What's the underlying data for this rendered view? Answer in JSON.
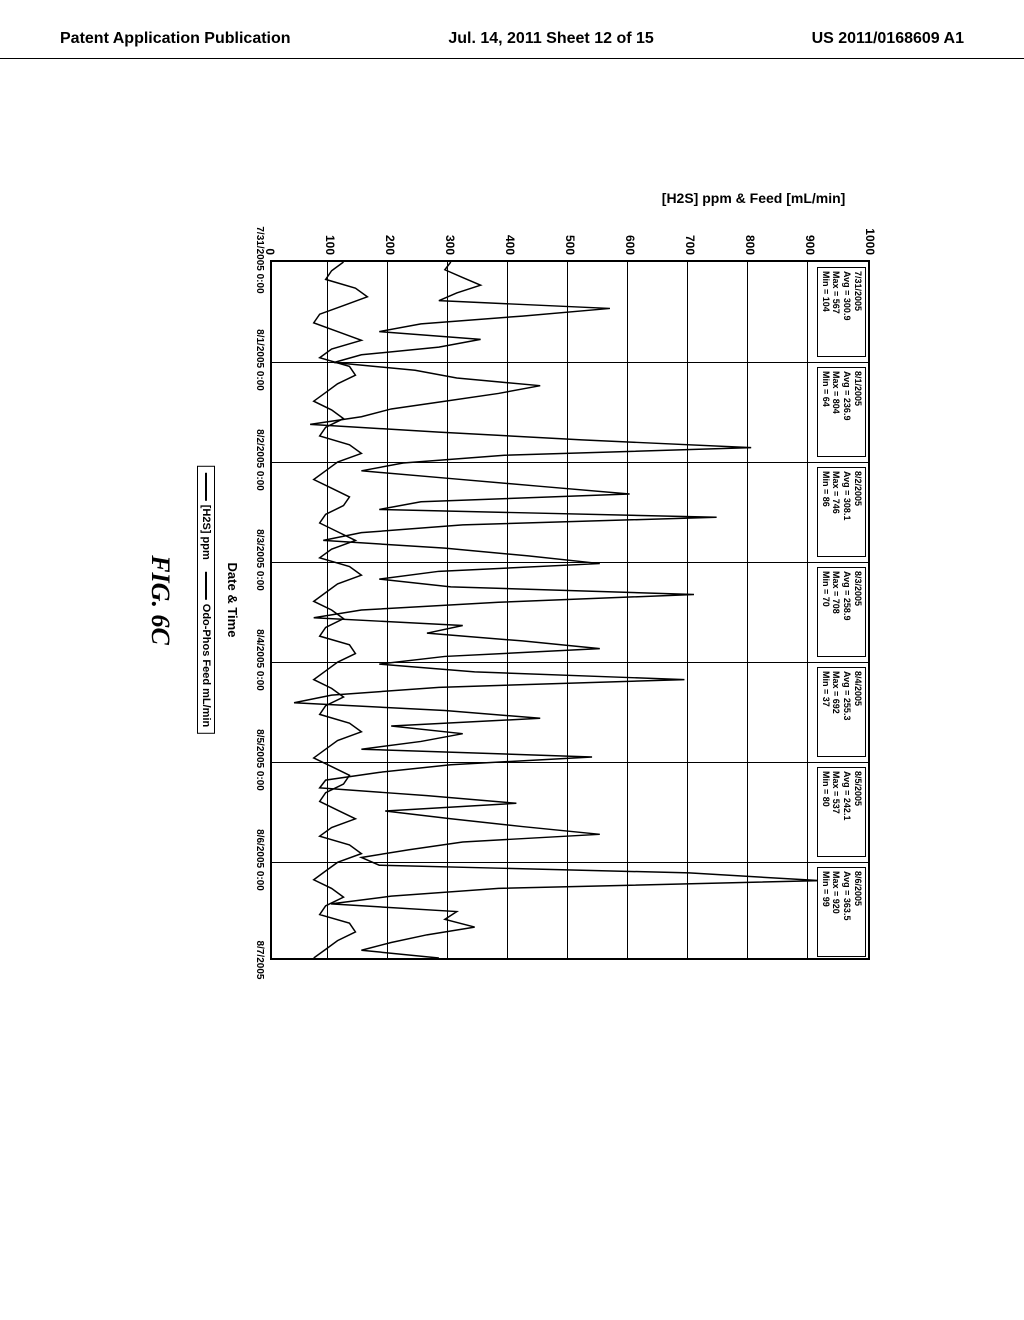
{
  "header": {
    "left": "Patent Application Publication",
    "center": "Jul. 14, 2011  Sheet 12 of 15",
    "right": "US 2011/0168609 A1"
  },
  "chart": {
    "type": "line",
    "ylabel": "[H2S] ppm & Feed [mL/min]",
    "xlabel": "Date & Time",
    "ylim": [
      0,
      1000
    ],
    "yticks": [
      0,
      100,
      200,
      300,
      400,
      500,
      600,
      700,
      800,
      900,
      1000
    ],
    "xticks": [
      "7/31/2005 0:00",
      "8/1/2005 0:00",
      "8/2/2005 0:00",
      "8/3/2005 0:00",
      "8/4/2005 0:00",
      "8/5/2005 0:00",
      "8/6/2005 0:00"
    ],
    "xtick_end": "8/7/2005",
    "background_color": "#ffffff",
    "grid_color": "#000000",
    "line_color": "#000000",
    "line_width": 1.5,
    "stat_boxes": [
      {
        "date": "7/31/2005",
        "avg": "300.9",
        "max": "567",
        "min": "104"
      },
      {
        "date": "8/1/2005",
        "avg": "236.9",
        "max": "804",
        "min": "64"
      },
      {
        "date": "8/2/2005",
        "avg": "308.1",
        "max": "746",
        "min": "86"
      },
      {
        "date": "8/3/2005",
        "avg": "258.9",
        "max": "708",
        "min": "70"
      },
      {
        "date": "8/4/2005",
        "avg": "255.3",
        "max": "692",
        "min": "37"
      },
      {
        "date": "8/5/2005",
        "avg": "242.1",
        "max": "537",
        "min": "80"
      },
      {
        "date": "8/6/2005",
        "avg": "363.5",
        "max": "920",
        "min": "99"
      }
    ],
    "legend": {
      "items": [
        "[H2S] ppm",
        "Odo-Phos Feed mL/min"
      ]
    },
    "series_h2s": [
      300,
      290,
      320,
      350,
      310,
      280,
      567,
      420,
      250,
      180,
      350,
      280,
      150,
      104,
      240,
      310,
      450,
      380,
      290,
      200,
      150,
      64,
      280,
      520,
      804,
      390,
      220,
      150,
      300,
      450,
      600,
      250,
      180,
      746,
      320,
      150,
      86,
      290,
      430,
      550,
      280,
      180,
      300,
      708,
      380,
      150,
      70,
      320,
      260,
      420,
      550,
      290,
      180,
      340,
      692,
      280,
      100,
      37,
      290,
      450,
      200,
      320,
      250,
      150,
      537,
      300,
      180,
      90,
      80,
      260,
      410,
      190,
      300,
      420,
      550,
      320,
      230,
      150,
      180,
      700,
      920,
      380,
      200,
      99,
      310,
      290,
      340,
      260,
      200,
      150,
      280
    ],
    "series_feed": [
      120,
      100,
      90,
      140,
      160,
      120,
      80,
      70,
      110,
      150,
      100,
      80,
      130,
      140,
      110,
      90,
      70,
      100,
      120,
      90,
      80,
      130,
      150,
      110,
      90,
      70,
      100,
      130,
      120,
      90,
      80,
      110,
      140,
      100,
      80,
      130,
      150,
      110,
      90,
      70,
      100,
      120,
      90,
      80,
      130,
      140,
      110,
      90,
      70,
      100,
      120,
      90,
      80,
      130,
      150,
      110,
      90,
      70,
      100,
      130,
      120,
      90,
      80,
      110,
      140,
      100,
      80,
      130,
      150,
      110,
      90,
      70,
      100,
      120,
      90,
      80,
      130,
      140,
      110,
      90,
      70
    ]
  },
  "figure_caption": "FIG. 6C"
}
